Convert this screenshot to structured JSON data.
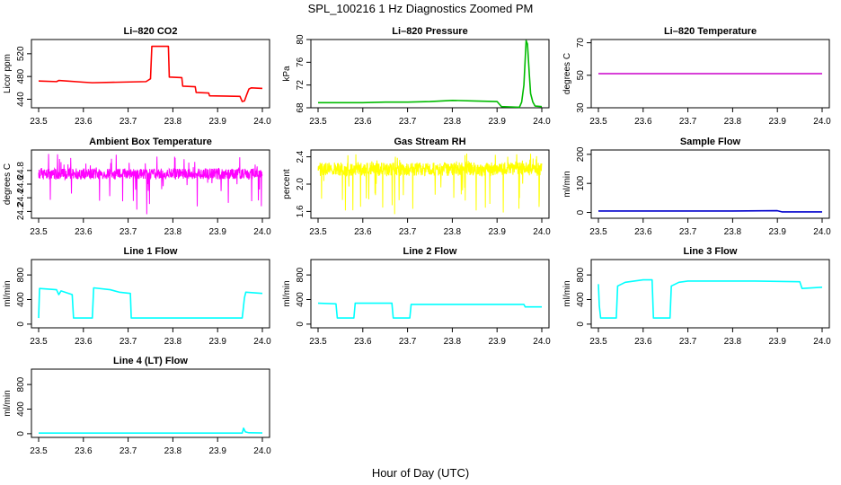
{
  "figure": {
    "title": "SPL_100216  1 Hz Diagnostics Zoomed PM",
    "xlabel": "Hour of Day (UTC)"
  },
  "chart_data": [
    {
      "type": "line",
      "title": "Li–820 CO2",
      "ylabel": "Licor ppm",
      "color": "#ff0000",
      "xlim": [
        23.5,
        24.0
      ],
      "ylim": [
        425,
        545
      ],
      "xticks": [
        "23.5",
        "23.6",
        "23.7",
        "23.8",
        "23.9",
        "24.0"
      ],
      "yticks": [
        "440",
        "480",
        "520"
      ],
      "x": [
        23.5,
        23.54,
        23.545,
        23.6,
        23.62,
        23.74,
        23.75,
        23.753,
        23.79,
        23.792,
        23.82,
        23.822,
        23.85,
        23.852,
        23.88,
        23.882,
        23.95,
        23.955,
        23.96,
        23.965,
        23.97,
        23.975,
        24.0
      ],
      "y": [
        472,
        471,
        473,
        470,
        469,
        471,
        476,
        533,
        533,
        479,
        478,
        463,
        462,
        452,
        451,
        446,
        445,
        436,
        437,
        448,
        458,
        460,
        459
      ]
    },
    {
      "type": "line",
      "title": "Li–820 Pressure",
      "ylabel": "kPa",
      "color": "#00bb00",
      "xlim": [
        23.5,
        24.0
      ],
      "ylim": [
        68,
        80
      ],
      "xticks": [
        "23.5",
        "23.6",
        "23.7",
        "23.8",
        "23.9",
        "24.0"
      ],
      "yticks": [
        "68",
        "72",
        "76",
        "80"
      ],
      "x": [
        23.5,
        23.55,
        23.6,
        23.65,
        23.7,
        23.75,
        23.8,
        23.85,
        23.9,
        23.91,
        23.95,
        23.955,
        23.96,
        23.965,
        23.968,
        23.972,
        23.975,
        23.98,
        23.985,
        24.0
      ],
      "y": [
        68.9,
        68.9,
        68.9,
        69.0,
        69.0,
        69.1,
        69.3,
        69.2,
        69.1,
        68.2,
        68.1,
        69.0,
        72.0,
        79.8,
        79.2,
        74.0,
        70.5,
        69.0,
        68.3,
        68.2
      ]
    },
    {
      "type": "line",
      "title": "Li–820 Temperature",
      "ylabel": "degrees C",
      "color": "#cc00cc",
      "xlim": [
        23.5,
        24.0
      ],
      "ylim": [
        30,
        72
      ],
      "xticks": [
        "23.5",
        "23.6",
        "23.7",
        "23.8",
        "23.9",
        "24.0"
      ],
      "yticks": [
        "30",
        "50",
        "70"
      ],
      "x": [
        23.5,
        24.0
      ],
      "y": [
        51,
        51
      ]
    },
    {
      "type": "line",
      "title": "Ambient Box Temperature",
      "ylabel": "degrees C",
      "color": "#ff00ff",
      "style": "noisy-band",
      "xlim": [
        23.5,
        24.0
      ],
      "ylim": [
        24.1,
        25.1
      ],
      "xticks": [
        "23.5",
        "23.6",
        "23.7",
        "23.8",
        "23.9",
        "24.0"
      ],
      "yticks": [
        "24.2",
        "24.4",
        "24.6",
        "24.8"
      ],
      "band": [
        24.67,
        24.83
      ],
      "spike_range": [
        24.15,
        25.05
      ]
    },
    {
      "type": "line",
      "title": "Gas Stream RH",
      "ylabel": "percent",
      "color": "#ffff00",
      "style": "noisy-band",
      "xlim": [
        23.5,
        24.0
      ],
      "ylim": [
        1.5,
        2.5
      ],
      "xticks": [
        "23.5",
        "23.6",
        "23.7",
        "23.8",
        "23.9",
        "24.0"
      ],
      "yticks": [
        "1.6",
        "2.0",
        "2.4"
      ],
      "band": [
        2.12,
        2.32
      ],
      "spike_range": [
        1.55,
        2.45
      ]
    },
    {
      "type": "line",
      "title": "Sample Flow",
      "ylabel": "ml/min",
      "color": "#0000cc",
      "xlim": [
        23.5,
        24.0
      ],
      "ylim": [
        -20,
        215
      ],
      "xticks": [
        "23.5",
        "23.6",
        "23.7",
        "23.8",
        "23.9",
        "24.0"
      ],
      "yticks": [
        "0",
        "100",
        "200"
      ],
      "x": [
        23.5,
        23.6,
        23.7,
        23.8,
        23.9,
        23.91,
        24.0
      ],
      "y": [
        5,
        5,
        5,
        5,
        6,
        2,
        2
      ]
    },
    {
      "type": "line",
      "title": "Line 1 Flow",
      "ylabel": "ml/min",
      "color": "#00ffff",
      "xlim": [
        23.5,
        24.0
      ],
      "ylim": [
        -60,
        1050
      ],
      "xticks": [
        "23.5",
        "23.6",
        "23.7",
        "23.8",
        "23.9",
        "24.0"
      ],
      "yticks": [
        "0",
        "400",
        "800"
      ],
      "x": [
        23.5,
        23.502,
        23.54,
        23.545,
        23.55,
        23.575,
        23.578,
        23.62,
        23.623,
        23.66,
        23.68,
        23.705,
        23.707,
        23.955,
        23.96,
        23.963,
        24.0
      ],
      "y": [
        100,
        580,
        560,
        480,
        540,
        480,
        100,
        100,
        590,
        560,
        520,
        500,
        100,
        100,
        430,
        520,
        500
      ]
    },
    {
      "type": "line",
      "title": "Line 2 Flow",
      "ylabel": "ml/min",
      "color": "#00ffff",
      "xlim": [
        23.5,
        24.0
      ],
      "ylim": [
        -60,
        1050
      ],
      "xticks": [
        "23.5",
        "23.6",
        "23.7",
        "23.8",
        "23.9",
        "24.0"
      ],
      "yticks": [
        "0",
        "400",
        "800"
      ],
      "x": [
        23.5,
        23.54,
        23.543,
        23.58,
        23.583,
        23.665,
        23.668,
        23.705,
        23.708,
        23.96,
        23.963,
        24.0
      ],
      "y": [
        340,
        330,
        100,
        100,
        340,
        340,
        100,
        100,
        320,
        320,
        280,
        280
      ]
    },
    {
      "type": "line",
      "title": "Line 3 Flow",
      "ylabel": "ml/min",
      "color": "#00ffff",
      "xlim": [
        23.5,
        24.0
      ],
      "ylim": [
        -60,
        1050
      ],
      "xticks": [
        "23.5",
        "23.6",
        "23.7",
        "23.8",
        "23.9",
        "24.0"
      ],
      "yticks": [
        "0",
        "400",
        "800"
      ],
      "x": [
        23.5,
        23.502,
        23.505,
        23.54,
        23.543,
        23.56,
        23.58,
        23.6,
        23.62,
        23.623,
        23.66,
        23.663,
        23.68,
        23.7,
        23.75,
        23.85,
        23.95,
        23.955,
        24.0
      ],
      "y": [
        650,
        300,
        100,
        100,
        620,
        680,
        700,
        720,
        720,
        100,
        100,
        620,
        680,
        700,
        700,
        700,
        690,
        580,
        600
      ]
    },
    {
      "type": "line",
      "title": "Line 4 (LT) Flow",
      "ylabel": "ml/min",
      "color": "#00ffff",
      "xlim": [
        23.5,
        24.0
      ],
      "ylim": [
        -60,
        1050
      ],
      "xticks": [
        "23.5",
        "23.6",
        "23.7",
        "23.8",
        "23.9",
        "24.0"
      ],
      "yticks": [
        "0",
        "400",
        "800"
      ],
      "x": [
        23.5,
        23.6,
        23.7,
        23.8,
        23.9,
        23.955,
        23.958,
        23.962,
        23.97,
        24.0
      ],
      "y": [
        10,
        10,
        10,
        10,
        10,
        10,
        90,
        30,
        15,
        12
      ]
    }
  ]
}
